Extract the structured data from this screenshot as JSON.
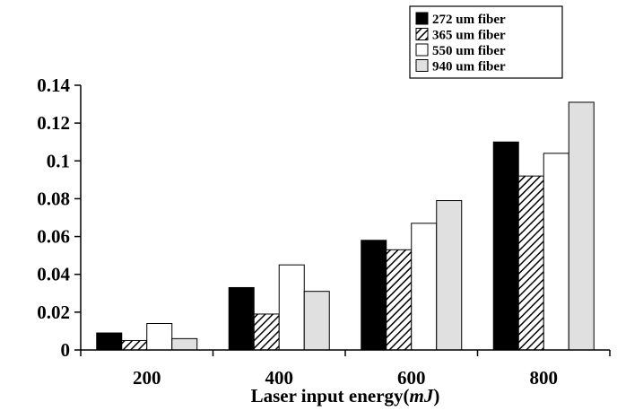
{
  "chart_data": {
    "type": "bar",
    "categories": [
      "200",
      "400",
      "600",
      "800"
    ],
    "series": [
      {
        "name": "272 um fiber",
        "values": [
          0.009,
          0.033,
          0.058,
          0.11
        ],
        "fill": "#000000",
        "pattern": "solid"
      },
      {
        "name": "365 um fiber",
        "values": [
          0.005,
          0.019,
          0.053,
          0.092
        ],
        "fill": "#ffffff",
        "pattern": "diagonal-hatch"
      },
      {
        "name": "550 um fiber",
        "values": [
          0.014,
          0.045,
          0.067,
          0.104
        ],
        "fill": "#ffffff",
        "pattern": "solid"
      },
      {
        "name": "940 um fiber",
        "values": [
          0.006,
          0.031,
          0.079,
          0.131
        ],
        "fill": "#e0e0e0",
        "pattern": "solid"
      }
    ],
    "xlabel": {
      "prefix": "Laser input energy(",
      "unit": "mJ",
      "suffix": ")"
    },
    "ylabel": "",
    "yticks": [
      "0",
      "0.02",
      "0.04",
      "0.06",
      "0.08",
      "0.1",
      "0.12",
      "0.14"
    ],
    "ytick_values": [
      0,
      0.02,
      0.04,
      0.06,
      0.08,
      0.1,
      0.12,
      0.14
    ],
    "ylim": [
      0,
      0.14
    ],
    "grid": false,
    "legend_position": "top-right"
  }
}
